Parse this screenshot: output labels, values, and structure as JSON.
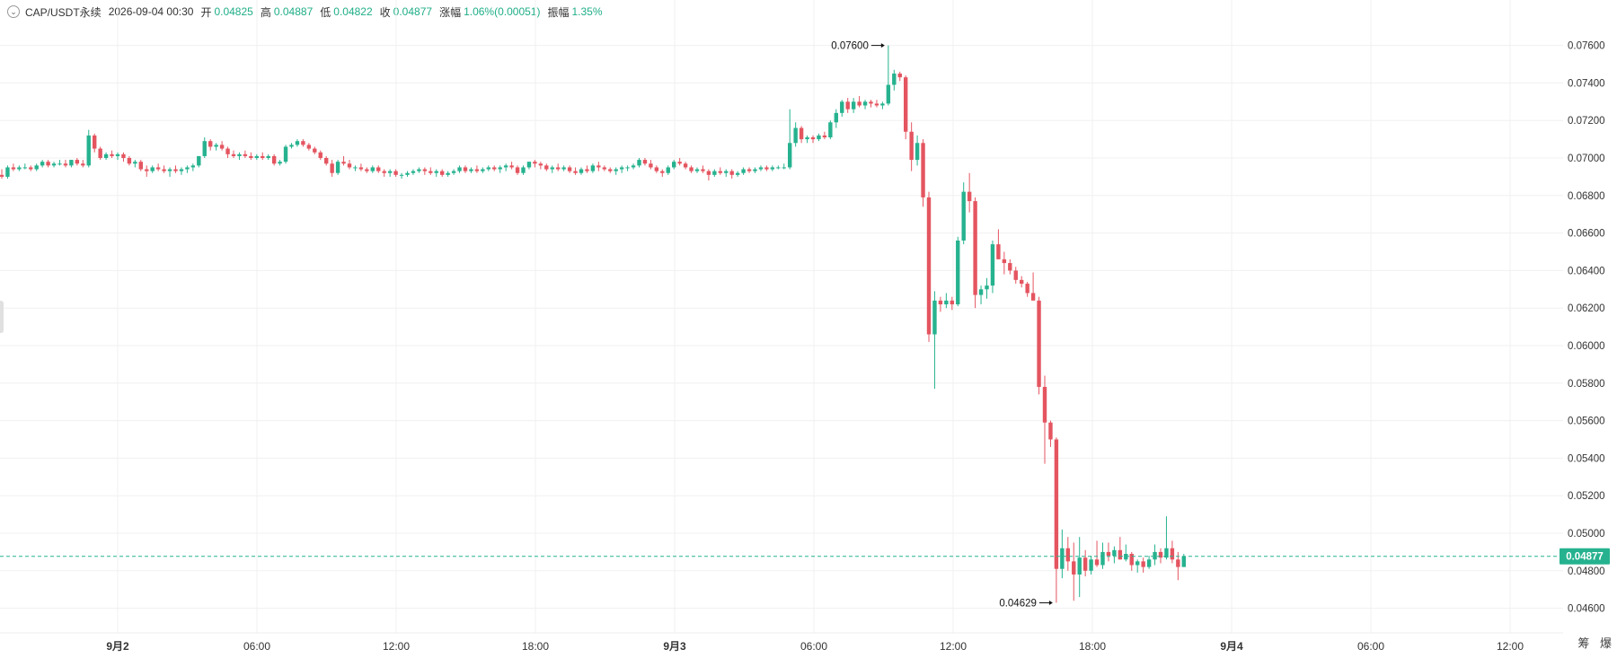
{
  "header": {
    "symbol": "CAP/USDT永续",
    "datetime": "2026-09-04 00:30",
    "open_label": "开",
    "open": "0.04825",
    "high_label": "高",
    "high": "0.04887",
    "low_label": "低",
    "low": "0.04822",
    "close_label": "收",
    "close": "0.04877",
    "change_label": "涨幅",
    "change": "1.06%(0.00051)",
    "amplitude_label": "振幅",
    "amplitude": "1.35%"
  },
  "corner_buttons": [
    "筹",
    "爆"
  ],
  "colors": {
    "up": "#26b28f",
    "down": "#e45560",
    "grid": "#f0f0f0",
    "text": "#333333",
    "price_line": "#26b28f"
  },
  "chart_data": {
    "type": "candlestick",
    "title": "CAP/USDT永续",
    "y_range": [
      0.0452,
      0.0772
    ],
    "y_ticks": [
      "0.07600",
      "0.07400",
      "0.07200",
      "0.07000",
      "0.06800",
      "0.06600",
      "0.06400",
      "0.06200",
      "0.06000",
      "0.05800",
      "0.05600",
      "0.05400",
      "0.05200",
      "0.05000",
      "0.04800",
      "0.04600"
    ],
    "x_labels": [
      "9月2",
      "06:00",
      "12:00",
      "18:00",
      "9月3",
      "06:00",
      "12:00",
      "18:00",
      "9月4",
      "06:00",
      "12:00"
    ],
    "current_price": "0.04877",
    "high_marker": {
      "label": "0.07600",
      "price": 0.076
    },
    "low_marker": {
      "label": "0.04629",
      "price": 0.04629
    },
    "candles": [
      [
        0.0691,
        0.0694,
        0.0689,
        0.069
      ],
      [
        0.069,
        0.0696,
        0.0689,
        0.0695
      ],
      [
        0.0695,
        0.0697,
        0.0693,
        0.0694
      ],
      [
        0.0694,
        0.0696,
        0.0693,
        0.0695
      ],
      [
        0.0695,
        0.0697,
        0.0694,
        0.0695
      ],
      [
        0.0695,
        0.0696,
        0.0693,
        0.0694
      ],
      [
        0.0694,
        0.0697,
        0.0693,
        0.0696
      ],
      [
        0.0696,
        0.0699,
        0.0695,
        0.0698
      ],
      [
        0.0698,
        0.0699,
        0.0695,
        0.0696
      ],
      [
        0.0696,
        0.0698,
        0.0695,
        0.0697
      ],
      [
        0.0697,
        0.0699,
        0.0696,
        0.0697
      ],
      [
        0.0697,
        0.0699,
        0.0695,
        0.0696
      ],
      [
        0.0696,
        0.0699,
        0.0695,
        0.0699
      ],
      [
        0.0699,
        0.07,
        0.0696,
        0.0697
      ],
      [
        0.0697,
        0.0699,
        0.0695,
        0.0696
      ],
      [
        0.0696,
        0.0715,
        0.0695,
        0.0712
      ],
      [
        0.0712,
        0.0713,
        0.0703,
        0.0705
      ],
      [
        0.0705,
        0.0706,
        0.0699,
        0.07
      ],
      [
        0.07,
        0.0703,
        0.0699,
        0.0702
      ],
      [
        0.0702,
        0.0704,
        0.07,
        0.0701
      ],
      [
        0.0701,
        0.0703,
        0.0699,
        0.0702
      ],
      [
        0.0702,
        0.0703,
        0.0698,
        0.07
      ],
      [
        0.07,
        0.0701,
        0.0696,
        0.0697
      ],
      [
        0.0697,
        0.0699,
        0.0695,
        0.0698
      ],
      [
        0.0698,
        0.0699,
        0.0693,
        0.0694
      ],
      [
        0.0694,
        0.0696,
        0.069,
        0.0693
      ],
      [
        0.0693,
        0.0696,
        0.0692,
        0.0695
      ],
      [
        0.0695,
        0.0697,
        0.0693,
        0.0694
      ],
      [
        0.0694,
        0.0696,
        0.0692,
        0.0693
      ],
      [
        0.0693,
        0.0695,
        0.069,
        0.0694
      ],
      [
        0.0694,
        0.0696,
        0.0692,
        0.0693
      ],
      [
        0.0693,
        0.0695,
        0.0691,
        0.0694
      ],
      [
        0.0694,
        0.0696,
        0.0692,
        0.0695
      ],
      [
        0.0695,
        0.0697,
        0.0693,
        0.0696
      ],
      [
        0.0696,
        0.0701,
        0.0695,
        0.0701
      ],
      [
        0.0701,
        0.0711,
        0.07,
        0.0709
      ],
      [
        0.0709,
        0.071,
        0.0704,
        0.0706
      ],
      [
        0.0706,
        0.0708,
        0.0704,
        0.0707
      ],
      [
        0.0707,
        0.0709,
        0.0704,
        0.0705
      ],
      [
        0.0705,
        0.0706,
        0.07,
        0.0702
      ],
      [
        0.0702,
        0.0704,
        0.07,
        0.0701
      ],
      [
        0.0701,
        0.0703,
        0.0699,
        0.0702
      ],
      [
        0.0702,
        0.0704,
        0.07,
        0.0701
      ],
      [
        0.0701,
        0.0703,
        0.0699,
        0.07
      ],
      [
        0.07,
        0.0702,
        0.0699,
        0.0701
      ],
      [
        0.0701,
        0.0703,
        0.0699,
        0.07
      ],
      [
        0.07,
        0.0702,
        0.0699,
        0.0701
      ],
      [
        0.0701,
        0.0702,
        0.0696,
        0.0697
      ],
      [
        0.0697,
        0.0699,
        0.0696,
        0.0698
      ],
      [
        0.0698,
        0.0707,
        0.0697,
        0.0706
      ],
      [
        0.0706,
        0.0708,
        0.0705,
        0.0707
      ],
      [
        0.0707,
        0.071,
        0.0706,
        0.0709
      ],
      [
        0.0709,
        0.071,
        0.0706,
        0.0707
      ],
      [
        0.0707,
        0.0708,
        0.0704,
        0.0705
      ],
      [
        0.0705,
        0.0706,
        0.0702,
        0.0703
      ],
      [
        0.0703,
        0.0704,
        0.0699,
        0.07
      ],
      [
        0.07,
        0.0701,
        0.0696,
        0.0697
      ],
      [
        0.0697,
        0.0699,
        0.069,
        0.0692
      ],
      [
        0.0692,
        0.0699,
        0.0691,
        0.0698
      ],
      [
        0.0698,
        0.0701,
        0.0696,
        0.0697
      ],
      [
        0.0697,
        0.0699,
        0.0694,
        0.0695
      ],
      [
        0.0695,
        0.0696,
        0.0693,
        0.0695
      ],
      [
        0.0695,
        0.0697,
        0.0693,
        0.0694
      ],
      [
        0.0694,
        0.0695,
        0.0692,
        0.0693
      ],
      [
        0.0693,
        0.0696,
        0.0692,
        0.0695
      ],
      [
        0.0695,
        0.0696,
        0.0692,
        0.0693
      ],
      [
        0.0693,
        0.0694,
        0.069,
        0.0692
      ],
      [
        0.0692,
        0.0694,
        0.069,
        0.0693
      ],
      [
        0.0693,
        0.0694,
        0.069,
        0.0691
      ],
      [
        0.0691,
        0.0692,
        0.0689,
        0.0691
      ],
      [
        0.0691,
        0.0693,
        0.069,
        0.0692
      ],
      [
        0.0692,
        0.0694,
        0.0691,
        0.0693
      ],
      [
        0.0693,
        0.0695,
        0.0692,
        0.0694
      ],
      [
        0.0694,
        0.0695,
        0.0691,
        0.0693
      ],
      [
        0.0693,
        0.0695,
        0.0691,
        0.0692
      ],
      [
        0.0692,
        0.0694,
        0.069,
        0.0693
      ],
      [
        0.0693,
        0.0694,
        0.069,
        0.0691
      ],
      [
        0.0691,
        0.0693,
        0.069,
        0.0692
      ],
      [
        0.0692,
        0.0694,
        0.0691,
        0.0693
      ],
      [
        0.0693,
        0.0696,
        0.0692,
        0.0695
      ],
      [
        0.0695,
        0.0696,
        0.0692,
        0.0693
      ],
      [
        0.0693,
        0.0695,
        0.0692,
        0.0694
      ],
      [
        0.0694,
        0.0696,
        0.0692,
        0.0693
      ],
      [
        0.0693,
        0.0695,
        0.0692,
        0.0694
      ],
      [
        0.0694,
        0.0696,
        0.0693,
        0.0695
      ],
      [
        0.0695,
        0.0696,
        0.0693,
        0.0694
      ],
      [
        0.0694,
        0.0696,
        0.0692,
        0.0695
      ],
      [
        0.0695,
        0.0697,
        0.0693,
        0.0696
      ],
      [
        0.0696,
        0.0698,
        0.0694,
        0.0695
      ],
      [
        0.0695,
        0.0696,
        0.0691,
        0.0692
      ],
      [
        0.0692,
        0.0696,
        0.0691,
        0.0695
      ],
      [
        0.0695,
        0.0698,
        0.0694,
        0.0698
      ],
      [
        0.0698,
        0.0699,
        0.0695,
        0.0697
      ],
      [
        0.0697,
        0.0698,
        0.0694,
        0.0696
      ],
      [
        0.0696,
        0.0697,
        0.0693,
        0.0694
      ],
      [
        0.0694,
        0.0696,
        0.0692,
        0.0695
      ],
      [
        0.0695,
        0.0697,
        0.0693,
        0.0694
      ],
      [
        0.0694,
        0.0696,
        0.0693,
        0.0695
      ],
      [
        0.0695,
        0.0696,
        0.0692,
        0.0693
      ],
      [
        0.0693,
        0.0695,
        0.0691,
        0.0692
      ],
      [
        0.0692,
        0.0695,
        0.0691,
        0.0694
      ],
      [
        0.0694,
        0.0696,
        0.0692,
        0.0693
      ],
      [
        0.0693,
        0.0697,
        0.0692,
        0.0696
      ],
      [
        0.0696,
        0.0698,
        0.0693,
        0.0695
      ],
      [
        0.0695,
        0.0696,
        0.0693,
        0.0694
      ],
      [
        0.0694,
        0.0695,
        0.0692,
        0.0693
      ],
      [
        0.0693,
        0.0695,
        0.0691,
        0.0694
      ],
      [
        0.0694,
        0.0696,
        0.0692,
        0.0695
      ],
      [
        0.0695,
        0.0696,
        0.0693,
        0.0695
      ],
      [
        0.0695,
        0.0697,
        0.0694,
        0.0696
      ],
      [
        0.0696,
        0.07,
        0.0695,
        0.0699
      ],
      [
        0.0699,
        0.07,
        0.0696,
        0.0697
      ],
      [
        0.0697,
        0.0699,
        0.0694,
        0.0695
      ],
      [
        0.0695,
        0.0696,
        0.0692,
        0.0693
      ],
      [
        0.0693,
        0.0694,
        0.069,
        0.0692
      ],
      [
        0.0692,
        0.0696,
        0.0691,
        0.0695
      ],
      [
        0.0695,
        0.0699,
        0.0694,
        0.0698
      ],
      [
        0.0698,
        0.07,
        0.0696,
        0.0697
      ],
      [
        0.0697,
        0.0698,
        0.0694,
        0.0695
      ],
      [
        0.0695,
        0.0696,
        0.0692,
        0.0693
      ],
      [
        0.0693,
        0.0695,
        0.0692,
        0.0694
      ],
      [
        0.0694,
        0.0696,
        0.0692,
        0.0693
      ],
      [
        0.0693,
        0.0694,
        0.0688,
        0.0691
      ],
      [
        0.0691,
        0.0694,
        0.069,
        0.0693
      ],
      [
        0.0693,
        0.0695,
        0.0691,
        0.0692
      ],
      [
        0.0692,
        0.0694,
        0.069,
        0.0693
      ],
      [
        0.0693,
        0.0694,
        0.0689,
        0.0691
      ],
      [
        0.0691,
        0.0693,
        0.069,
        0.0692
      ],
      [
        0.0692,
        0.0695,
        0.0691,
        0.0694
      ],
      [
        0.0694,
        0.0695,
        0.0692,
        0.0693
      ],
      [
        0.0693,
        0.0695,
        0.0692,
        0.0694
      ],
      [
        0.0694,
        0.0696,
        0.0693,
        0.0695
      ],
      [
        0.0695,
        0.0696,
        0.0693,
        0.0694
      ],
      [
        0.0694,
        0.0696,
        0.0693,
        0.0695
      ],
      [
        0.0695,
        0.0696,
        0.0694,
        0.0695
      ],
      [
        0.0695,
        0.0697,
        0.0694,
        0.0695
      ],
      [
        0.0695,
        0.0726,
        0.0694,
        0.0708
      ],
      [
        0.0708,
        0.0719,
        0.0706,
        0.0716
      ],
      [
        0.0716,
        0.0717,
        0.0708,
        0.071
      ],
      [
        0.071,
        0.0712,
        0.0708,
        0.0711
      ],
      [
        0.0711,
        0.0712,
        0.0708,
        0.071
      ],
      [
        0.071,
        0.0713,
        0.0709,
        0.0712
      ],
      [
        0.0712,
        0.0714,
        0.071,
        0.0711
      ],
      [
        0.0711,
        0.072,
        0.071,
        0.0719
      ],
      [
        0.0719,
        0.0726,
        0.0716,
        0.0724
      ],
      [
        0.0724,
        0.0731,
        0.0722,
        0.073
      ],
      [
        0.073,
        0.0732,
        0.0724,
        0.0726
      ],
      [
        0.0726,
        0.0732,
        0.0724,
        0.073
      ],
      [
        0.073,
        0.0733,
        0.0727,
        0.0728
      ],
      [
        0.0728,
        0.0731,
        0.0726,
        0.073
      ],
      [
        0.073,
        0.0731,
        0.0727,
        0.0729
      ],
      [
        0.0729,
        0.0731,
        0.0727,
        0.0728
      ],
      [
        0.0728,
        0.073,
        0.0726,
        0.0729
      ],
      [
        0.0729,
        0.076,
        0.0728,
        0.0739
      ],
      [
        0.0739,
        0.0747,
        0.0736,
        0.0745
      ],
      [
        0.0745,
        0.0746,
        0.0741,
        0.0743
      ],
      [
        0.0743,
        0.0744,
        0.071,
        0.0714
      ],
      [
        0.0714,
        0.0719,
        0.0693,
        0.0699
      ],
      [
        0.0699,
        0.0712,
        0.0696,
        0.0708
      ],
      [
        0.0708,
        0.071,
        0.0674,
        0.0679
      ],
      [
        0.0679,
        0.0682,
        0.0602,
        0.0606
      ],
      [
        0.0606,
        0.0629,
        0.0577,
        0.0624
      ],
      [
        0.0624,
        0.0626,
        0.0618,
        0.0622
      ],
      [
        0.0622,
        0.0628,
        0.062,
        0.0624
      ],
      [
        0.0624,
        0.0626,
        0.0619,
        0.0622
      ],
      [
        0.0622,
        0.0658,
        0.0621,
        0.0656
      ],
      [
        0.0656,
        0.0687,
        0.0654,
        0.0682
      ],
      [
        0.0682,
        0.0692,
        0.0671,
        0.0677
      ],
      [
        0.0677,
        0.0679,
        0.062,
        0.0627
      ],
      [
        0.0627,
        0.0632,
        0.0622,
        0.063
      ],
      [
        0.063,
        0.0636,
        0.0625,
        0.0632
      ],
      [
        0.0632,
        0.0656,
        0.0628,
        0.0654
      ],
      [
        0.0654,
        0.0662,
        0.0647,
        0.0646
      ],
      [
        0.0646,
        0.065,
        0.0638,
        0.0644
      ],
      [
        0.0644,
        0.0646,
        0.0638,
        0.064
      ],
      [
        0.064,
        0.0642,
        0.0633,
        0.0635
      ],
      [
        0.0635,
        0.0637,
        0.0631,
        0.0633
      ],
      [
        0.0633,
        0.0634,
        0.0626,
        0.0628
      ],
      [
        0.0628,
        0.0639,
        0.0626,
        0.0624
      ],
      [
        0.0624,
        0.0626,
        0.0574,
        0.0578
      ],
      [
        0.0578,
        0.0584,
        0.0537,
        0.0559
      ],
      [
        0.0559,
        0.056,
        0.0546,
        0.055
      ],
      [
        0.055,
        0.0551,
        0.0463,
        0.0481
      ],
      [
        0.0481,
        0.0502,
        0.0476,
        0.0492
      ],
      [
        0.0492,
        0.0498,
        0.048,
        0.0485
      ],
      [
        0.0485,
        0.0495,
        0.0464,
        0.0478
      ],
      [
        0.0478,
        0.0498,
        0.0466,
        0.0487
      ],
      [
        0.0487,
        0.0491,
        0.0477,
        0.048
      ],
      [
        0.048,
        0.0488,
        0.0478,
        0.0486
      ],
      [
        0.0486,
        0.0496,
        0.0482,
        0.0483
      ],
      [
        0.0483,
        0.0495,
        0.0481,
        0.049
      ],
      [
        0.049,
        0.0495,
        0.0485,
        0.0488
      ],
      [
        0.0488,
        0.0493,
        0.0484,
        0.0491
      ],
      [
        0.0491,
        0.0498,
        0.0486,
        0.0486
      ],
      [
        0.0486,
        0.0494,
        0.0485,
        0.0489
      ],
      [
        0.0489,
        0.049,
        0.048,
        0.0483
      ],
      [
        0.0483,
        0.0486,
        0.0479,
        0.0485
      ],
      [
        0.0485,
        0.0487,
        0.0479,
        0.0482
      ],
      [
        0.0482,
        0.0488,
        0.0481,
        0.0486
      ],
      [
        0.0486,
        0.0494,
        0.0483,
        0.049
      ],
      [
        0.049,
        0.0492,
        0.0484,
        0.0487
      ],
      [
        0.0487,
        0.0509,
        0.0486,
        0.0492
      ],
      [
        0.0492,
        0.0496,
        0.0484,
        0.0486
      ],
      [
        0.0486,
        0.049,
        0.0475,
        0.0482
      ],
      [
        0.0482,
        0.0489,
        0.0482,
        0.04877
      ]
    ]
  }
}
